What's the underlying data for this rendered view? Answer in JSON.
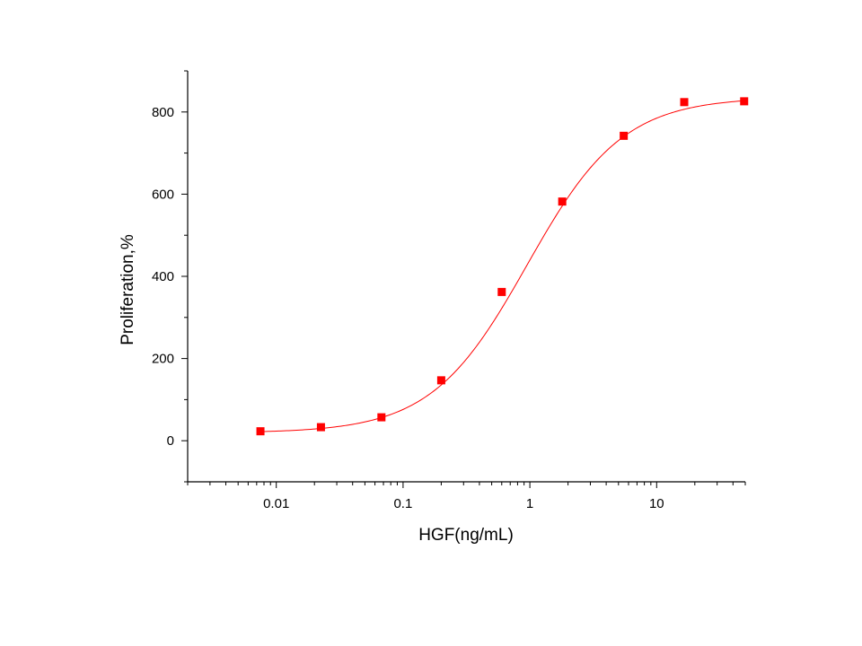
{
  "chart_data": {
    "type": "scatter",
    "title": "",
    "xlabel": "HGF(ng/mL)",
    "ylabel": "Proliferation,%",
    "xscale": "log",
    "xlim": [
      0.002,
      50
    ],
    "ylim": [
      -100,
      900
    ],
    "xticks": [
      {
        "value": 0.01,
        "label": "0.01"
      },
      {
        "value": 0.1,
        "label": "0.1"
      },
      {
        "value": 1,
        "label": "1"
      },
      {
        "value": 10,
        "label": "10"
      }
    ],
    "yticks": [
      {
        "value": 0,
        "label": "0"
      },
      {
        "value": 200,
        "label": "200"
      },
      {
        "value": 400,
        "label": "400"
      },
      {
        "value": 600,
        "label": "600"
      },
      {
        "value": 800,
        "label": "800"
      }
    ],
    "grid": false,
    "legend": "none",
    "series": [
      {
        "marker": "square",
        "color": "#ff0000",
        "x": [
          0.0075,
          0.0225,
          0.0675,
          0.2,
          0.6,
          1.8,
          5.5,
          16.5,
          49
        ],
        "y": [
          23,
          33,
          57,
          147,
          362,
          582,
          742,
          824,
          826
        ]
      }
    ],
    "fit_curve": {
      "type": "four-parameter-logistic",
      "color": "#ff0000",
      "params": {
        "bottom": 19,
        "top": 836,
        "ec50": 0.95,
        "hill": 1.15
      }
    }
  }
}
